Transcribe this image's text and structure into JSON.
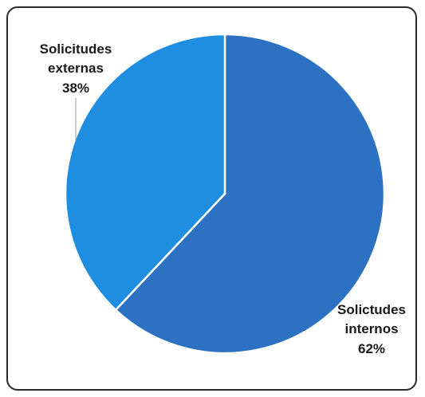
{
  "chart_data": {
    "type": "pie",
    "title": "",
    "slices": [
      {
        "label_lines": [
          "Solicitudes",
          "externas"
        ],
        "percent_label": "38%",
        "value": 38,
        "color": "#1f8ee0"
      },
      {
        "label_lines": [
          "Solictudes",
          "internos"
        ],
        "percent_label": "62%",
        "value": 62,
        "color": "#2c71c2"
      }
    ],
    "start_angle_deg": 0,
    "direction": "clockwise",
    "legend": "none",
    "label_position": "outside with leader line"
  }
}
